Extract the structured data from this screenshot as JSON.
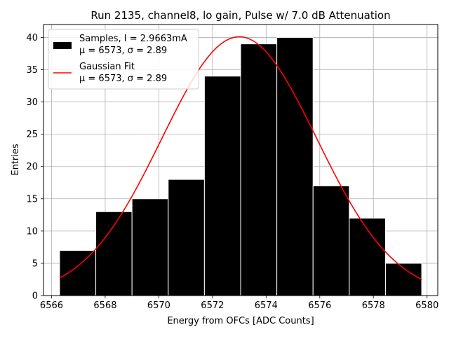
{
  "chart_data": {
    "type": "bar",
    "title": "Run 2135, channel8, lo gain, Pulse w/ 7.0 dB Attenuation",
    "xlabel": "Energy from OFCs [ADC Counts]",
    "ylabel": "Entries",
    "xlim": [
      6565.7,
      6580.4
    ],
    "ylim": [
      0,
      42
    ],
    "xticks": [
      6566,
      6568,
      6570,
      6572,
      6574,
      6576,
      6578,
      6580
    ],
    "yticks": [
      0,
      5,
      10,
      15,
      20,
      25,
      30,
      35,
      40
    ],
    "grid": true,
    "legend_position": "top-left",
    "bin_edges": [
      6566.3,
      6567.65,
      6569.0,
      6570.35,
      6571.7,
      6573.05,
      6574.4,
      6575.75,
      6577.1,
      6578.45,
      6579.8
    ],
    "values": [
      7,
      13,
      15,
      18,
      34,
      39,
      40,
      17,
      12,
      5
    ],
    "fit": {
      "mu": 6573.0,
      "sigma": 2.89,
      "amplitude": 40.1,
      "x_range": [
        6566.3,
        6579.8
      ]
    },
    "series": [
      {
        "name": "Samples, I = 2.9663mA",
        "stats": "μ = 6573, σ = 2.89",
        "color": "#000000"
      },
      {
        "name": "Gaussian Fit",
        "stats": "μ = 6573, σ = 2.89",
        "color": "#ff0000"
      }
    ]
  }
}
